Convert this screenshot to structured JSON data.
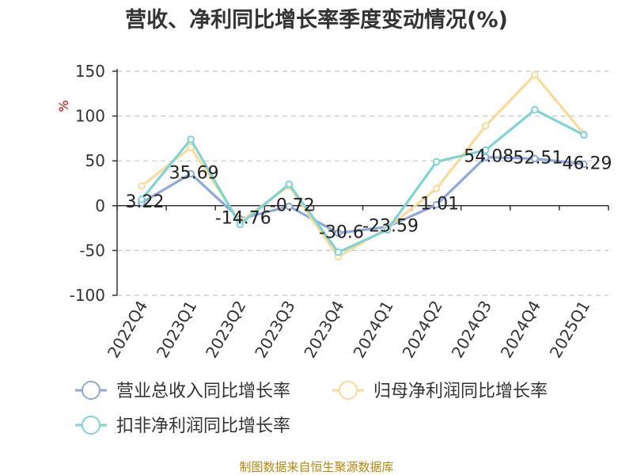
{
  "chart_data": {
    "type": "line",
    "title": "营收、净利同比增长率季度变动情况(%)",
    "ylabel": "%",
    "xlabel": "",
    "categories": [
      "2022Q4",
      "2023Q1",
      "2023Q2",
      "2023Q3",
      "2023Q4",
      "2024Q1",
      "2024Q2",
      "2024Q3",
      "2024Q4",
      "2025Q1"
    ],
    "ylim": [
      -100,
      150
    ],
    "yticks": [
      150,
      100,
      50,
      0,
      -50,
      -100
    ],
    "grid": true,
    "legend_position": "bottom",
    "series": [
      {
        "name": "营业总收入同比增长率",
        "color": "#8fa8d8",
        "values": [
          3.22,
          35.69,
          -14.76,
          -0.72,
          -30.6,
          -23.59,
          1.01,
          54.08,
          52.51,
          46.29
        ],
        "labels": [
          "3.22",
          "35.69",
          "-14.76",
          "-0.72",
          "-30.6",
          "-23.59",
          "1.01",
          "54.08",
          "52.51",
          "46.29"
        ]
      },
      {
        "name": "归母净利润同比增长率",
        "color": "#fbd99a",
        "values": [
          22,
          65,
          -18,
          22,
          -57,
          -25,
          19,
          89,
          146,
          80
        ]
      },
      {
        "name": "扣非净利润同比增长率",
        "color": "#7fd3d3",
        "values": [
          7,
          74,
          -21,
          24,
          -52,
          -27,
          49,
          62,
          107,
          79
        ]
      }
    ]
  },
  "source": "制图数据来自恒生聚源数据库"
}
